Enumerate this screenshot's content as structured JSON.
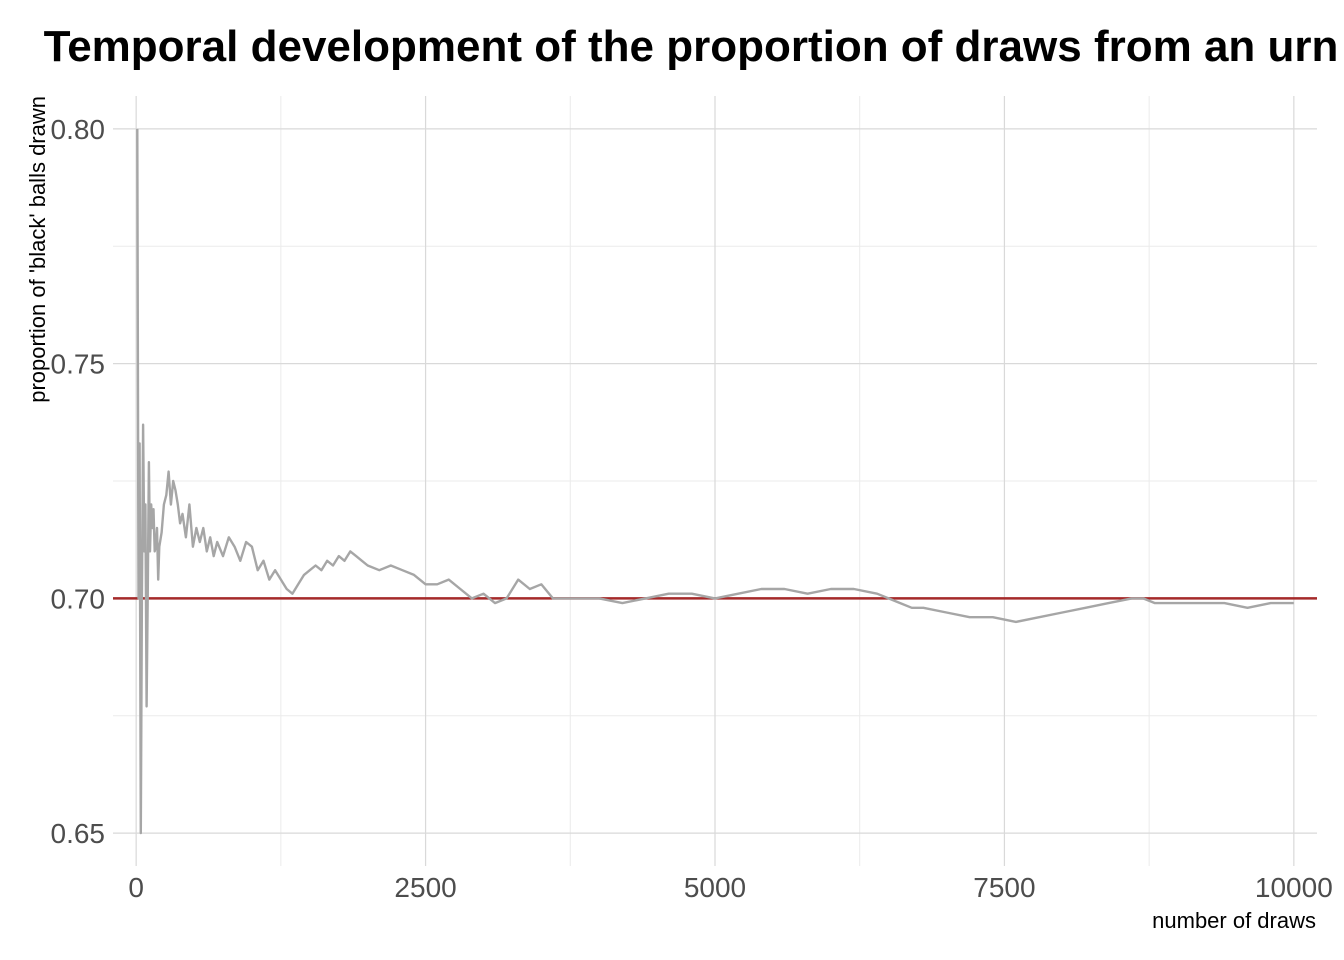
{
  "chart_data": {
    "type": "line",
    "title": "Temporal development of the proportion of draws from an urn",
    "xlabel": "number of draws",
    "ylabel": "proportion of 'black' balls drawn",
    "xlim": [
      -200,
      10200
    ],
    "ylim": [
      0.643,
      0.807
    ],
    "x_ticks": [
      0,
      2500,
      5000,
      7500,
      10000
    ],
    "x_tick_labels": [
      "0",
      "2500",
      "5000",
      "7500",
      "10000"
    ],
    "y_ticks": [
      0.65,
      0.7,
      0.75,
      0.8
    ],
    "y_tick_labels": [
      "0.65",
      "0.70",
      "0.75",
      "0.80"
    ],
    "grid": true,
    "reference_line": {
      "y": 0.7,
      "color": "#a52a2a"
    },
    "series": [
      {
        "color": "#a6a6a6",
        "x": [
          10,
          20,
          30,
          40,
          50,
          60,
          70,
          80,
          90,
          100,
          110,
          120,
          130,
          140,
          150,
          160,
          170,
          180,
          190,
          200,
          220,
          240,
          260,
          280,
          300,
          320,
          340,
          360,
          380,
          400,
          430,
          460,
          490,
          520,
          550,
          580,
          610,
          640,
          670,
          700,
          750,
          800,
          850,
          900,
          950,
          1000,
          1050,
          1100,
          1150,
          1200,
          1250,
          1300,
          1350,
          1400,
          1450,
          1500,
          1550,
          1600,
          1650,
          1700,
          1750,
          1800,
          1850,
          1900,
          1950,
          2000,
          2100,
          2200,
          2300,
          2400,
          2500,
          2600,
          2700,
          2800,
          2900,
          3000,
          3100,
          3200,
          3300,
          3400,
          3500,
          3600,
          3700,
          3800,
          3900,
          4000,
          4200,
          4400,
          4600,
          4800,
          5000,
          5200,
          5400,
          5600,
          5800,
          6000,
          6200,
          6400,
          6600,
          6700,
          6800,
          7000,
          7200,
          7400,
          7600,
          7800,
          8000,
          8200,
          8400,
          8600,
          8700,
          8800,
          9000,
          9200,
          9400,
          9600,
          9800,
          10000
        ],
        "values": [
          0.8,
          0.7,
          0.733,
          0.65,
          0.7,
          0.737,
          0.71,
          0.72,
          0.677,
          0.7,
          0.729,
          0.71,
          0.72,
          0.715,
          0.719,
          0.71,
          0.711,
          0.715,
          0.704,
          0.711,
          0.714,
          0.72,
          0.722,
          0.727,
          0.72,
          0.725,
          0.723,
          0.72,
          0.716,
          0.718,
          0.713,
          0.72,
          0.711,
          0.715,
          0.712,
          0.715,
          0.71,
          0.713,
          0.709,
          0.712,
          0.709,
          0.713,
          0.711,
          0.708,
          0.712,
          0.711,
          0.706,
          0.708,
          0.704,
          0.706,
          0.704,
          0.702,
          0.701,
          0.703,
          0.705,
          0.706,
          0.707,
          0.706,
          0.708,
          0.707,
          0.709,
          0.708,
          0.71,
          0.709,
          0.708,
          0.707,
          0.706,
          0.707,
          0.706,
          0.705,
          0.703,
          0.703,
          0.704,
          0.702,
          0.7,
          0.701,
          0.699,
          0.7,
          0.704,
          0.702,
          0.703,
          0.7,
          0.7,
          0.7,
          0.7,
          0.7,
          0.699,
          0.7,
          0.701,
          0.701,
          0.7,
          0.701,
          0.702,
          0.702,
          0.701,
          0.702,
          0.702,
          0.701,
          0.699,
          0.698,
          0.698,
          0.697,
          0.696,
          0.696,
          0.695,
          0.696,
          0.697,
          0.698,
          0.699,
          0.7,
          0.7,
          0.699,
          0.699,
          0.699,
          0.699,
          0.698,
          0.699,
          0.699
        ]
      }
    ]
  }
}
